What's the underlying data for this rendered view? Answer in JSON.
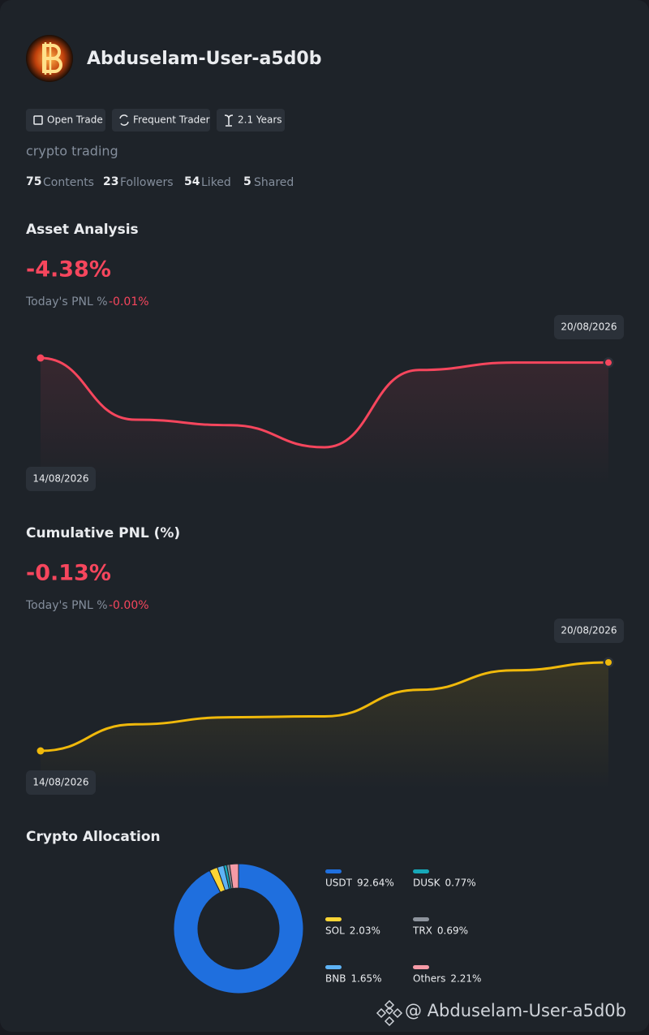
{
  "profile": {
    "name": "Abduselam-User-a5d0b",
    "badges": [
      "Open Trade",
      "Frequent Trader",
      "2.1 Years"
    ],
    "bio": "crypto trading",
    "stats": [
      {
        "count": 75,
        "label": "Contents"
      },
      {
        "count": 23,
        "label": "Followers"
      },
      {
        "count": 54,
        "label": "Liked"
      },
      {
        "count": 5,
        "label": "Shared"
      }
    ]
  },
  "chart_data": [
    {
      "type": "line",
      "title": "Asset Analysis",
      "headline": "-4.38%",
      "pnl_label": "Today's PNL %",
      "pnl_value": "-0.01%",
      "categories": [
        "14/08/2026",
        null,
        null,
        null,
        null,
        null,
        "20/08/2026"
      ],
      "values": [
        100,
        33,
        27,
        3,
        87,
        95,
        95
      ],
      "color": "#f6465d"
    },
    {
      "type": "line",
      "title": "Cumulative PNL (%)",
      "headline": "-0.13%",
      "pnl_label": "Today's PNL %",
      "pnl_value": "-0.00%",
      "categories": [
        "14/08/2026",
        null,
        null,
        null,
        null,
        null,
        "20/08/2026"
      ],
      "values": [
        0,
        30,
        38,
        39,
        69,
        91,
        100
      ],
      "color": "#f0b90b"
    },
    {
      "type": "pie",
      "title": "Crypto Allocation",
      "categories": [
        "USDT",
        "SOL",
        "BNB",
        "DUSK",
        "TRX",
        "Others"
      ],
      "values": [
        92.64,
        2.03,
        1.65,
        0.77,
        0.69,
        2.21
      ],
      "value_labels": [
        "92.64%",
        "2.03%",
        "1.65%",
        "0.77%",
        "0.69%",
        "2.21%"
      ],
      "colors": [
        "#1f6fde",
        "#fcd535",
        "#5eb3f5",
        "#16a8b8",
        "#8d939c",
        "#f59aa6"
      ]
    }
  ],
  "watermark": "@ Abduselam-User-a5d0b"
}
